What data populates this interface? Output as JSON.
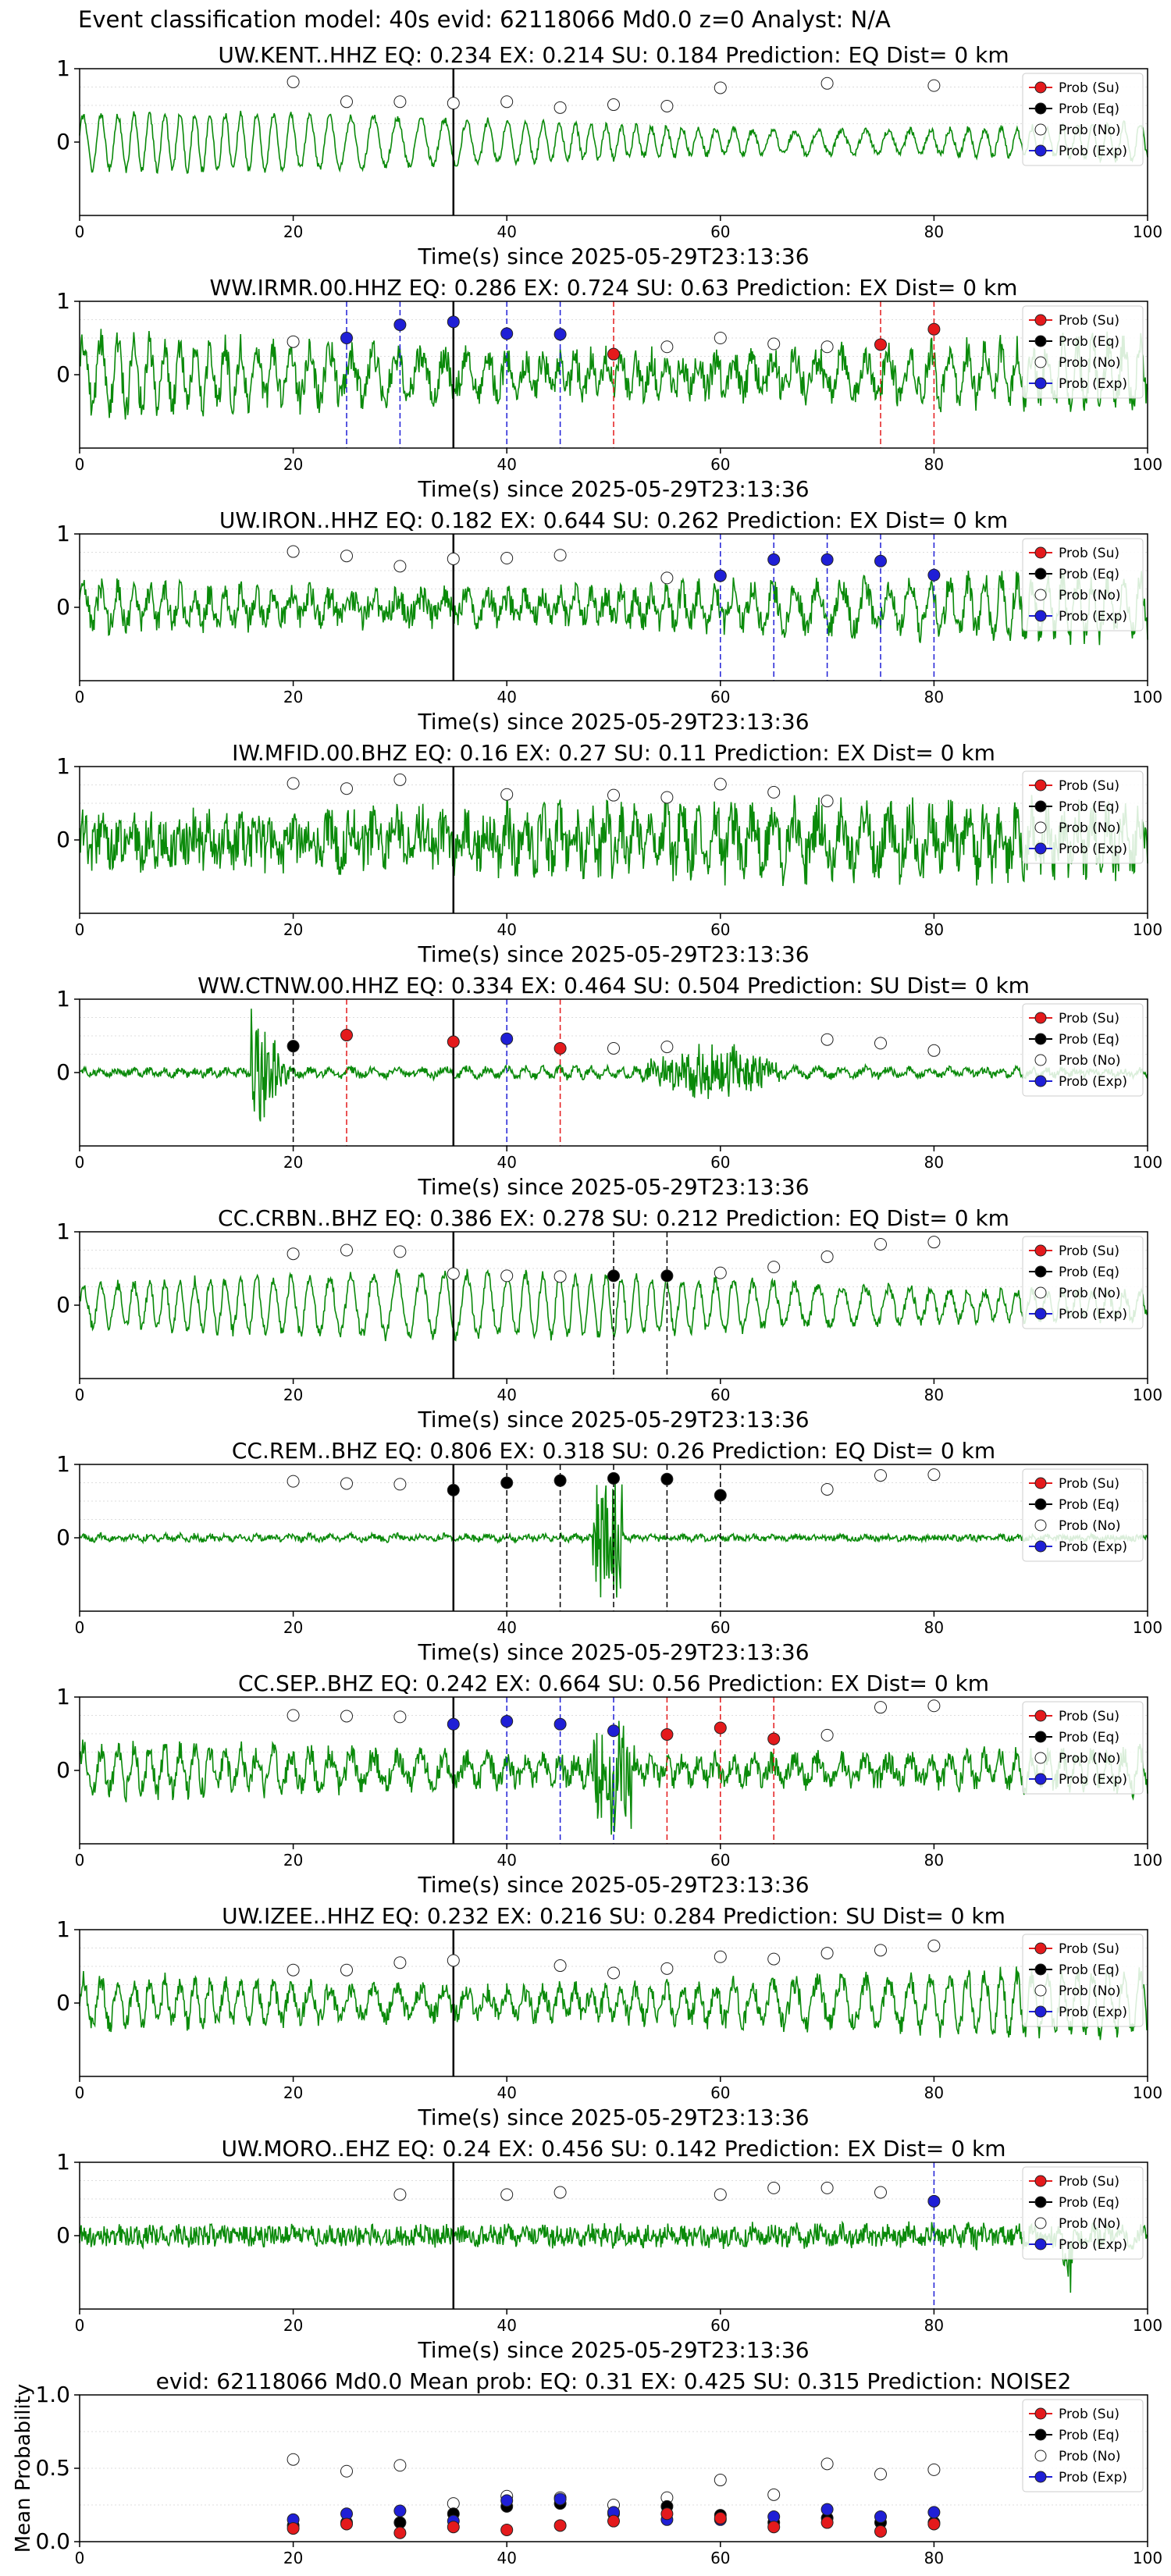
{
  "figure": {
    "title": "Event classification model: 40s evid: 62118066 Md0.0 z=0 Analyst: N/A",
    "legend_labels": [
      "Prob (Su)",
      "Prob (Eq)",
      "Prob (No)",
      "Prob (Exp)"
    ],
    "colors": {
      "su": "#e41a1c",
      "eq": "#000000",
      "no": "#ffffff",
      "exp": "#1f1fd6",
      "waveform": "#0a8a0a",
      "grid": "#dddddd"
    }
  },
  "chart_data": [
    {
      "type": "line",
      "station": "UW.KENT..HHZ",
      "title": "UW.KENT..HHZ   EQ: 0.234  EX: 0.214  SU: 0.184   Prediction: EQ    Dist= 0 km",
      "xlabel": "Time(s) since 2025-05-29T23:13:36",
      "xlim": [
        0,
        100
      ],
      "ylim": [
        -1,
        1
      ],
      "x_ticks": [
        "0",
        "20",
        "40",
        "60",
        "80",
        "100"
      ],
      "y_ticks": [
        "1",
        "0"
      ],
      "event_line": 35,
      "wave_amp": 0.38,
      "wave_noise": 0.05,
      "wave_seed": 1,
      "no": [
        [
          20,
          0.82
        ],
        [
          25,
          0.55
        ],
        [
          30,
          0.55
        ],
        [
          35,
          0.53
        ],
        [
          40,
          0.55
        ],
        [
          45,
          0.47
        ],
        [
          50,
          0.51
        ],
        [
          55,
          0.49
        ],
        [
          60,
          0.74
        ],
        [
          70,
          0.8
        ],
        [
          80,
          0.77
        ]
      ],
      "eq": [],
      "exp": [],
      "su": []
    },
    {
      "type": "line",
      "station": "WW.IRMR.00.HHZ",
      "title": "WW.IRMR.00.HHZ   EQ: 0.286  EX: 0.724  SU: 0.63   Prediction: EX    Dist= 0 km",
      "xlabel": "Time(s) since 2025-05-29T23:13:36",
      "xlim": [
        0,
        100
      ],
      "ylim": [
        -1,
        1
      ],
      "x_ticks": [
        "0",
        "20",
        "40",
        "60",
        "80",
        "100"
      ],
      "y_ticks": [
        "1",
        "0"
      ],
      "event_line": 35,
      "wave_amp": 0.45,
      "wave_noise": 0.22,
      "wave_seed": 2,
      "no": [
        [
          20,
          0.45
        ],
        [
          55,
          0.38
        ],
        [
          60,
          0.5
        ],
        [
          65,
          0.42
        ],
        [
          70,
          0.38
        ]
      ],
      "eq": [],
      "exp": [
        [
          25,
          0.5
        ],
        [
          30,
          0.68
        ],
        [
          35,
          0.72
        ],
        [
          40,
          0.56
        ],
        [
          45,
          0.55
        ]
      ],
      "su": [
        [
          50,
          0.28
        ],
        [
          75,
          0.41
        ],
        [
          80,
          0.62
        ]
      ]
    },
    {
      "type": "line",
      "station": "UW.IRON..HHZ",
      "title": "UW.IRON..HHZ   EQ: 0.182  EX: 0.644  SU: 0.262   Prediction: EX    Dist= 0 km",
      "xlabel": "Time(s) since 2025-05-29T23:13:36",
      "xlim": [
        0,
        100
      ],
      "ylim": [
        -1,
        1
      ],
      "x_ticks": [
        "0",
        "20",
        "40",
        "60",
        "80",
        "100"
      ],
      "y_ticks": [
        "1",
        "0"
      ],
      "event_line": 35,
      "wave_amp": 0.35,
      "wave_noise": 0.18,
      "wave_seed": 3,
      "no": [
        [
          20,
          0.76
        ],
        [
          25,
          0.7
        ],
        [
          30,
          0.56
        ],
        [
          35,
          0.66
        ],
        [
          40,
          0.67
        ],
        [
          45,
          0.71
        ],
        [
          55,
          0.4
        ]
      ],
      "eq": [],
      "exp": [
        [
          60,
          0.43
        ],
        [
          65,
          0.65
        ],
        [
          70,
          0.65
        ],
        [
          75,
          0.63
        ],
        [
          80,
          0.44
        ]
      ],
      "su": []
    },
    {
      "type": "line",
      "station": "IW.MFID.00.BHZ",
      "title": "IW.MFID.00.BHZ   EQ: 0.16  EX: 0.27  SU: 0.11   Prediction: EX    Dist= 0 km",
      "xlabel": "Time(s) since 2025-05-29T23:13:36",
      "xlim": [
        0,
        100
      ],
      "ylim": [
        -1,
        1
      ],
      "x_ticks": [
        "0",
        "20",
        "40",
        "60",
        "80",
        "100"
      ],
      "y_ticks": [
        "1",
        "0"
      ],
      "event_line": 35,
      "wave_amp": 0.3,
      "wave_noise": 0.35,
      "wave_seed": 4,
      "no": [
        [
          20,
          0.77
        ],
        [
          25,
          0.7
        ],
        [
          30,
          0.82
        ],
        [
          40,
          0.62
        ],
        [
          50,
          0.61
        ],
        [
          55,
          0.58
        ],
        [
          60,
          0.76
        ],
        [
          65,
          0.65
        ],
        [
          70,
          0.53
        ]
      ],
      "eq": [],
      "exp": [],
      "su": []
    },
    {
      "type": "line",
      "station": "WW.CTNW.00.HHZ",
      "title": "WW.CTNW.00.HHZ   EQ: 0.334  EX: 0.464  SU: 0.504   Prediction: SU    Dist= 0 km",
      "xlabel": "Time(s) since 2025-05-29T23:13:36",
      "xlim": [
        0,
        100
      ],
      "ylim": [
        -1,
        1
      ],
      "x_ticks": [
        "0",
        "20",
        "40",
        "60",
        "80",
        "100"
      ],
      "y_ticks": [
        "1",
        "0"
      ],
      "event_line": 35,
      "wave_amp": 0.06,
      "wave_noise": 0.05,
      "wave_seed": 5,
      "no": [
        [
          50,
          0.33
        ],
        [
          55,
          0.35
        ],
        [
          70,
          0.45
        ],
        [
          75,
          0.4
        ],
        [
          80,
          0.3
        ]
      ],
      "eq": [
        [
          20,
          0.36
        ]
      ],
      "exp": [
        [
          40,
          0.46
        ]
      ],
      "su": [
        [
          25,
          0.51
        ],
        [
          35,
          0.42
        ],
        [
          45,
          0.33
        ]
      ]
    },
    {
      "type": "line",
      "station": "CC.CRBN..BHZ",
      "title": "CC.CRBN..BHZ   EQ: 0.386  EX: 0.278  SU: 0.212   Prediction: EQ    Dist= 0 km",
      "xlabel": "Time(s) since 2025-05-29T23:13:36",
      "xlim": [
        0,
        100
      ],
      "ylim": [
        -1,
        1
      ],
      "x_ticks": [
        "0",
        "20",
        "40",
        "60",
        "80",
        "100"
      ],
      "y_ticks": [
        "1",
        "0"
      ],
      "event_line": 35,
      "wave_amp": 0.42,
      "wave_noise": 0.08,
      "wave_seed": 6,
      "no": [
        [
          20,
          0.7
        ],
        [
          25,
          0.75
        ],
        [
          30,
          0.73
        ],
        [
          35,
          0.43
        ],
        [
          40,
          0.4
        ],
        [
          45,
          0.39
        ],
        [
          60,
          0.44
        ],
        [
          65,
          0.52
        ],
        [
          70,
          0.66
        ],
        [
          75,
          0.83
        ],
        [
          80,
          0.86
        ]
      ],
      "eq": [
        [
          50,
          0.4
        ],
        [
          55,
          0.4
        ]
      ],
      "exp": [],
      "su": []
    },
    {
      "type": "line",
      "station": "CC.REM..BHZ",
      "title": "CC.REM..BHZ   EQ: 0.806  EX: 0.318  SU: 0.26   Prediction: EQ    Dist= 0 km",
      "xlabel": "Time(s) since 2025-05-29T23:13:36",
      "xlim": [
        0,
        100
      ],
      "ylim": [
        -1,
        1
      ],
      "x_ticks": [
        "0",
        "20",
        "40",
        "60",
        "80",
        "100"
      ],
      "y_ticks": [
        "1",
        "0"
      ],
      "event_line": 35,
      "wave_amp": 0.03,
      "wave_noise": 0.04,
      "wave_seed": 7,
      "no": [
        [
          20,
          0.77
        ],
        [
          25,
          0.74
        ],
        [
          30,
          0.73
        ],
        [
          70,
          0.66
        ],
        [
          75,
          0.85
        ],
        [
          80,
          0.86
        ]
      ],
      "eq": [
        [
          35,
          0.65
        ],
        [
          40,
          0.75
        ],
        [
          45,
          0.78
        ],
        [
          50,
          0.81
        ],
        [
          55,
          0.8
        ],
        [
          60,
          0.58
        ]
      ],
      "exp": [],
      "su": []
    },
    {
      "type": "line",
      "station": "CC.SEP..BHZ",
      "title": "CC.SEP..BHZ   EQ: 0.242  EX: 0.664  SU: 0.56   Prediction: EX    Dist= 0 km",
      "xlabel": "Time(s) since 2025-05-29T23:13:36",
      "xlim": [
        0,
        100
      ],
      "ylim": [
        -1,
        1
      ],
      "x_ticks": [
        "0",
        "20",
        "40",
        "60",
        "80",
        "100"
      ],
      "y_ticks": [
        "1",
        "0"
      ],
      "event_line": 35,
      "wave_amp": 0.28,
      "wave_noise": 0.16,
      "wave_seed": 8,
      "no": [
        [
          20,
          0.75
        ],
        [
          25,
          0.74
        ],
        [
          30,
          0.73
        ],
        [
          70,
          0.48
        ],
        [
          75,
          0.86
        ],
        [
          80,
          0.88
        ]
      ],
      "eq": [],
      "exp": [
        [
          35,
          0.63
        ],
        [
          40,
          0.67
        ],
        [
          45,
          0.63
        ],
        [
          50,
          0.54
        ]
      ],
      "su": [
        [
          55,
          0.49
        ],
        [
          60,
          0.58
        ],
        [
          65,
          0.43
        ]
      ]
    },
    {
      "type": "line",
      "station": "UW.IZEE..HHZ",
      "title": "UW.IZEE..HHZ   EQ: 0.232  EX: 0.216  SU: 0.284   Prediction: SU    Dist= 0 km",
      "xlabel": "Time(s) since 2025-05-29T23:13:36",
      "xlim": [
        0,
        100
      ],
      "ylim": [
        -1,
        1
      ],
      "x_ticks": [
        "0",
        "20",
        "40",
        "60",
        "80",
        "100"
      ],
      "y_ticks": [
        "1",
        "0"
      ],
      "event_line": 35,
      "wave_amp": 0.4,
      "wave_noise": 0.14,
      "wave_seed": 9,
      "no": [
        [
          20,
          0.45
        ],
        [
          25,
          0.45
        ],
        [
          30,
          0.55
        ],
        [
          35,
          0.58
        ],
        [
          45,
          0.51
        ],
        [
          50,
          0.41
        ],
        [
          55,
          0.47
        ],
        [
          60,
          0.63
        ],
        [
          65,
          0.6
        ],
        [
          70,
          0.68
        ],
        [
          75,
          0.72
        ],
        [
          80,
          0.78
        ]
      ],
      "eq": [],
      "exp": [],
      "su": []
    },
    {
      "type": "line",
      "station": "UW.MORO..EHZ",
      "title": "UW.MORO..EHZ   EQ: 0.24  EX: 0.456  SU: 0.142   Prediction: EX    Dist= 0 km",
      "xlabel": "Time(s) since 2025-05-29T23:13:36",
      "xlim": [
        0,
        100
      ],
      "ylim": [
        -1,
        1
      ],
      "x_ticks": [
        "0",
        "20",
        "40",
        "60",
        "80",
        "100"
      ],
      "y_ticks": [
        "1",
        "0"
      ],
      "event_line": 35,
      "wave_amp": 0.06,
      "wave_noise": 0.14,
      "wave_seed": 10,
      "no": [
        [
          30,
          0.56
        ],
        [
          40,
          0.56
        ],
        [
          45,
          0.59
        ],
        [
          60,
          0.56
        ],
        [
          65,
          0.65
        ],
        [
          70,
          0.65
        ],
        [
          75,
          0.59
        ]
      ],
      "eq": [],
      "exp": [
        [
          80,
          0.47
        ]
      ],
      "su": []
    },
    {
      "type": "scatter",
      "station": "mean",
      "title": "evid: 62118066  Md0.0   Mean prob:   EQ: 0.31  EX: 0.425  SU: 0.315   Prediction: NOISE2",
      "ylabel": "Mean Probability",
      "xlim": [
        0,
        100
      ],
      "ylim": [
        0,
        1
      ],
      "x_ticks": [
        "0",
        "20",
        "40",
        "60",
        "80",
        "100"
      ],
      "y_ticks": [
        "1.0",
        "0.5",
        "0.0"
      ],
      "no": [
        [
          20,
          0.56
        ],
        [
          25,
          0.48
        ],
        [
          30,
          0.52
        ],
        [
          35,
          0.26
        ],
        [
          40,
          0.31
        ],
        [
          45,
          0.3
        ],
        [
          50,
          0.25
        ],
        [
          55,
          0.3
        ],
        [
          60,
          0.42
        ],
        [
          65,
          0.32
        ],
        [
          70,
          0.53
        ],
        [
          75,
          0.46
        ],
        [
          80,
          0.49
        ]
      ],
      "eq": [
        [
          20,
          0.11
        ],
        [
          25,
          0.13
        ],
        [
          30,
          0.13
        ],
        [
          35,
          0.19
        ],
        [
          40,
          0.24
        ],
        [
          45,
          0.26
        ],
        [
          50,
          0.19
        ],
        [
          55,
          0.24
        ],
        [
          60,
          0.18
        ],
        [
          65,
          0.13
        ],
        [
          70,
          0.16
        ],
        [
          75,
          0.13
        ],
        [
          80,
          0.13
        ]
      ],
      "exp": [
        [
          20,
          0.15
        ],
        [
          25,
          0.19
        ],
        [
          30,
          0.21
        ],
        [
          35,
          0.14
        ],
        [
          40,
          0.28
        ],
        [
          45,
          0.29
        ],
        [
          50,
          0.2
        ],
        [
          55,
          0.15
        ],
        [
          60,
          0.15
        ],
        [
          65,
          0.17
        ],
        [
          70,
          0.22
        ],
        [
          75,
          0.17
        ],
        [
          80,
          0.2
        ]
      ],
      "su": [
        [
          20,
          0.09
        ],
        [
          25,
          0.12
        ],
        [
          30,
          0.06
        ],
        [
          35,
          0.1
        ],
        [
          40,
          0.08
        ],
        [
          45,
          0.11
        ],
        [
          50,
          0.14
        ],
        [
          55,
          0.19
        ],
        [
          60,
          0.16
        ],
        [
          65,
          0.1
        ],
        [
          70,
          0.13
        ],
        [
          75,
          0.07
        ],
        [
          80,
          0.12
        ]
      ]
    }
  ]
}
